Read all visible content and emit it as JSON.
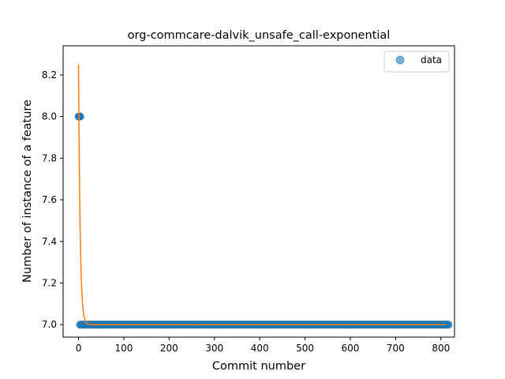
{
  "chart_data": {
    "type": "scatter",
    "title": "org-commcare-dalvik_unsafe_call-exponential",
    "xlabel": "Commit number",
    "ylabel": "Number of instance of a feature",
    "xlim": [
      -34,
      830
    ],
    "ylim": [
      6.94,
      8.34
    ],
    "xticks": [
      0,
      100,
      200,
      300,
      400,
      500,
      600,
      700,
      800
    ],
    "yticks": [
      7.0,
      7.2,
      7.4,
      7.6,
      7.8,
      8.0,
      8.2
    ],
    "ytick_labels": [
      "7.0",
      "7.2",
      "7.4",
      "7.6",
      "7.8",
      "8.0",
      "8.2"
    ],
    "legend": {
      "position": "top-right",
      "entries": [
        "data"
      ]
    },
    "series": [
      {
        "name": "data",
        "kind": "scatter",
        "color": "#1f77b4",
        "points": [
          [
            0,
            8.0
          ],
          [
            1,
            8.0
          ],
          [
            2,
            8.0
          ],
          [
            3,
            8.0
          ],
          [
            4,
            8.0
          ]
        ],
        "baseline": {
          "x_start": 3,
          "x_end": 817,
          "y": 7.0
        }
      },
      {
        "kind": "line",
        "color": "#ff7f0e",
        "model": "exponential",
        "a": 1.25,
        "b": 0.28,
        "c": 7.0,
        "x_range": [
          0,
          817
        ]
      }
    ]
  }
}
